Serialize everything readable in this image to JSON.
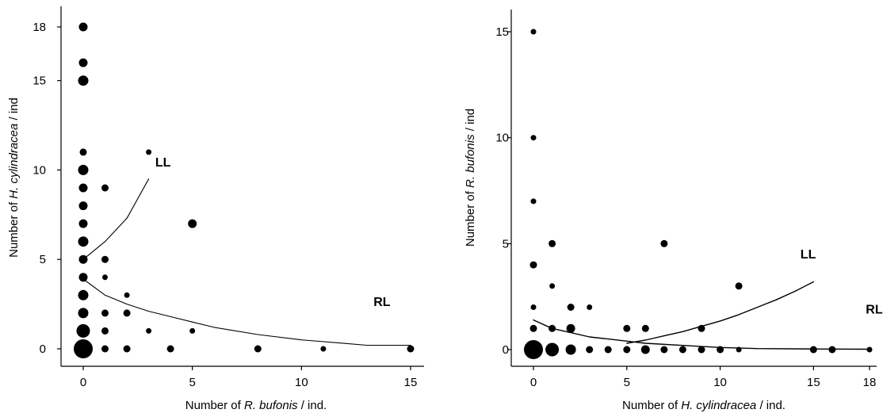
{
  "chart_data": [
    {
      "type": "scatter",
      "xlabel": {
        "pre": "Number of ",
        "italic": "R. bufonis",
        "post": " / ind."
      },
      "ylabel": {
        "pre": "Number of ",
        "italic": "H. cylindracea",
        "post": " / ind"
      },
      "xlim": [
        0,
        15
      ],
      "ylim": [
        0,
        18
      ],
      "xticks": [
        0,
        5,
        10,
        15
      ],
      "yticks": [
        0,
        5,
        10,
        15,
        18
      ],
      "points": [
        {
          "x": 0,
          "y": 0,
          "size": 5
        },
        {
          "x": 0,
          "y": 1,
          "size": 4
        },
        {
          "x": 0,
          "y": 2,
          "size": 3
        },
        {
          "x": 0,
          "y": 3,
          "size": 3
        },
        {
          "x": 0,
          "y": 4,
          "size": 2
        },
        {
          "x": 0,
          "y": 5,
          "size": 2
        },
        {
          "x": 0,
          "y": 6,
          "size": 3
        },
        {
          "x": 0,
          "y": 7,
          "size": 2
        },
        {
          "x": 0,
          "y": 8,
          "size": 2
        },
        {
          "x": 0,
          "y": 9,
          "size": 2
        },
        {
          "x": 0,
          "y": 10,
          "size": 3
        },
        {
          "x": 0,
          "y": 11,
          "size": 1
        },
        {
          "x": 0,
          "y": 15,
          "size": 3
        },
        {
          "x": 0,
          "y": 16,
          "size": 2
        },
        {
          "x": 0,
          "y": 18,
          "size": 2
        },
        {
          "x": 1,
          "y": 0,
          "size": 1
        },
        {
          "x": 1,
          "y": 1,
          "size": 1
        },
        {
          "x": 1,
          "y": 2,
          "size": 1
        },
        {
          "x": 1,
          "y": 4,
          "size": 0
        },
        {
          "x": 1,
          "y": 5,
          "size": 1
        },
        {
          "x": 1,
          "y": 9,
          "size": 1
        },
        {
          "x": 2,
          "y": 0,
          "size": 1
        },
        {
          "x": 2,
          "y": 2,
          "size": 1
        },
        {
          "x": 2,
          "y": 3,
          "size": 0
        },
        {
          "x": 3,
          "y": 1,
          "size": 0
        },
        {
          "x": 3,
          "y": 11,
          "size": 0
        },
        {
          "x": 4,
          "y": 0,
          "size": 1
        },
        {
          "x": 5,
          "y": 1,
          "size": 0
        },
        {
          "x": 5,
          "y": 7,
          "size": 2
        },
        {
          "x": 8,
          "y": 0,
          "size": 1
        },
        {
          "x": 11,
          "y": 0,
          "size": 0
        },
        {
          "x": 15,
          "y": 0,
          "size": 1
        }
      ],
      "curves": [
        {
          "label": "LL",
          "points": [
            [
              0,
              5
            ],
            [
              1,
              6
            ],
            [
              2,
              7.3
            ],
            [
              3,
              9.5
            ]
          ]
        },
        {
          "label": "RL",
          "points": [
            [
              0,
              3.9
            ],
            [
              1,
              3
            ],
            [
              2,
              2.5
            ],
            [
              3,
              2.1
            ],
            [
              4,
              1.8
            ],
            [
              5,
              1.5
            ],
            [
              6,
              1.2
            ],
            [
              8,
              0.8
            ],
            [
              10,
              0.5
            ],
            [
              12,
              0.3
            ],
            [
              13,
              0.2
            ],
            [
              15,
              0.2
            ]
          ]
        }
      ],
      "annotations": [
        {
          "text": "LL",
          "x": 3.3,
          "y": 10.2
        },
        {
          "text": "RL",
          "x": 13.3,
          "y": 2.4
        }
      ]
    },
    {
      "type": "scatter",
      "xlabel": {
        "pre": "Number of ",
        "italic": "H. cylindracea",
        "post": " / ind."
      },
      "ylabel": {
        "pre": "Number of ",
        "italic": "R. bufonis",
        "post": " / ind"
      },
      "xlim": [
        0,
        18
      ],
      "ylim": [
        0,
        15
      ],
      "xticks": [
        0,
        5,
        10,
        15,
        18
      ],
      "yticks": [
        0,
        5,
        10,
        15
      ],
      "points": [
        {
          "x": 0,
          "y": 0,
          "size": 5
        },
        {
          "x": 1,
          "y": 0,
          "size": 4
        },
        {
          "x": 2,
          "y": 0,
          "size": 3
        },
        {
          "x": 3,
          "y": 0,
          "size": 1
        },
        {
          "x": 4,
          "y": 0,
          "size": 1
        },
        {
          "x": 5,
          "y": 0,
          "size": 1
        },
        {
          "x": 6,
          "y": 0,
          "size": 2
        },
        {
          "x": 7,
          "y": 0,
          "size": 1
        },
        {
          "x": 8,
          "y": 0,
          "size": 1
        },
        {
          "x": 9,
          "y": 0,
          "size": 1
        },
        {
          "x": 10,
          "y": 0,
          "size": 1
        },
        {
          "x": 11,
          "y": 0,
          "size": 0
        },
        {
          "x": 15,
          "y": 0,
          "size": 1
        },
        {
          "x": 16,
          "y": 0,
          "size": 1
        },
        {
          "x": 18,
          "y": 0,
          "size": 0
        },
        {
          "x": 0,
          "y": 1,
          "size": 1
        },
        {
          "x": 1,
          "y": 1,
          "size": 1
        },
        {
          "x": 2,
          "y": 1,
          "size": 2
        },
        {
          "x": 5,
          "y": 1,
          "size": 1
        },
        {
          "x": 6,
          "y": 1,
          "size": 1
        },
        {
          "x": 9,
          "y": 1,
          "size": 1
        },
        {
          "x": 0,
          "y": 2,
          "size": 0
        },
        {
          "x": 2,
          "y": 2,
          "size": 1
        },
        {
          "x": 3,
          "y": 2,
          "size": 0
        },
        {
          "x": 1,
          "y": 3,
          "size": 0
        },
        {
          "x": 11,
          "y": 3,
          "size": 1
        },
        {
          "x": 0,
          "y": 4,
          "size": 1
        },
        {
          "x": 1,
          "y": 5,
          "size": 1
        },
        {
          "x": 7,
          "y": 5,
          "size": 1
        },
        {
          "x": 0,
          "y": 7,
          "size": 0
        },
        {
          "x": 0,
          "y": 10,
          "size": 0
        },
        {
          "x": 0,
          "y": 15,
          "size": 0
        }
      ],
      "curves": [
        {
          "label": "RL",
          "points": [
            [
              0,
              1.4
            ],
            [
              1,
              1
            ],
            [
              2,
              0.8
            ],
            [
              3,
              0.6
            ],
            [
              4,
              0.5
            ],
            [
              5,
              0.4
            ],
            [
              6,
              0.3
            ],
            [
              8,
              0.2
            ],
            [
              10,
              0.1
            ],
            [
              12,
              0.05
            ],
            [
              15,
              0.03
            ],
            [
              18,
              0.02
            ]
          ]
        },
        {
          "label": "LL",
          "points": [
            [
              5,
              0.3
            ],
            [
              6,
              0.45
            ],
            [
              7,
              0.65
            ],
            [
              8,
              0.85
            ],
            [
              9,
              1.1
            ],
            [
              10,
              1.35
            ],
            [
              11,
              1.65
            ],
            [
              12,
              2
            ],
            [
              13,
              2.35
            ],
            [
              14,
              2.75
            ],
            [
              15,
              3.2
            ]
          ]
        }
      ],
      "annotations": [
        {
          "text": "LL",
          "x": 14.3,
          "y": 4.3
        },
        {
          "text": "RL",
          "x": 17.8,
          "y": 1.7
        }
      ]
    }
  ]
}
